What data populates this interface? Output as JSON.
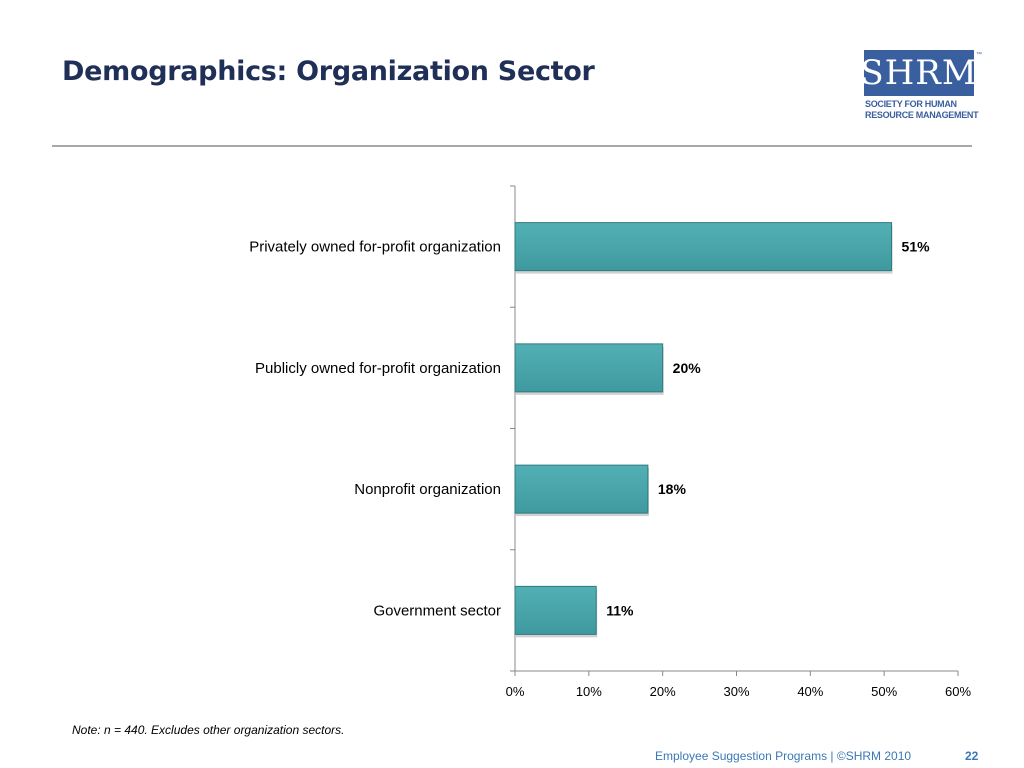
{
  "slide": {
    "title": "Demographics: Organization Sector",
    "note": "Note: n = 440. Excludes other organization sectors.",
    "footer": "Employee Suggestion Programs | ©SHRM 2010",
    "page_number": "22"
  },
  "logo": {
    "letters": "SHRM",
    "tm": "™",
    "line1": "SOCIETY FOR HUMAN",
    "line2": "RESOURCE MANAGEMENT",
    "color": "#3a5f9e"
  },
  "colors": {
    "bar_fill": "#3f9a9f",
    "bar_stroke": "#2f7a80",
    "title": "#1f2f57",
    "footer": "#3a78b5"
  },
  "chart_data": {
    "type": "bar",
    "orientation": "horizontal",
    "categories": [
      "Privately owned for-profit organization",
      "Publicly owned for-profit organization",
      "Nonprofit organization",
      "Government sector"
    ],
    "values": [
      51,
      20,
      18,
      11
    ],
    "value_labels": [
      "51%",
      "20%",
      "18%",
      "11%"
    ],
    "xlim": [
      0,
      60
    ],
    "x_ticks": [
      0,
      10,
      20,
      30,
      40,
      50,
      60
    ],
    "x_tick_labels": [
      "0%",
      "10%",
      "20%",
      "30%",
      "40%",
      "50%",
      "60%"
    ],
    "grid": false,
    "legend": "none"
  }
}
